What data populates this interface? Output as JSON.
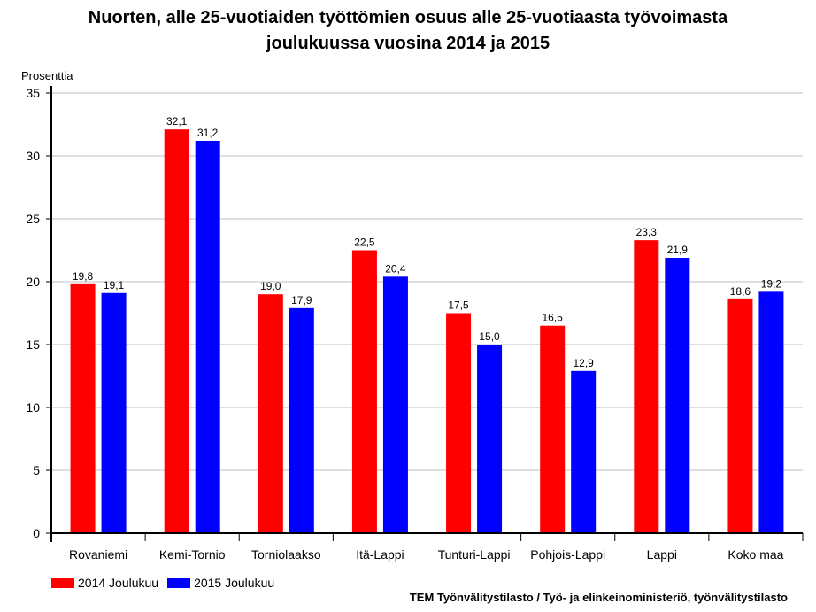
{
  "chart_data": {
    "type": "bar",
    "title": [
      "Nuorten, alle 25-vuotiaiden työttömien osuus alle 25-vuotiaasta työvoimasta",
      "joulukuussa vuosina 2014 ja 2015"
    ],
    "ylabel": "Prosenttia",
    "ylim": [
      0,
      35
    ],
    "yticks": [
      0,
      5,
      10,
      15,
      20,
      25,
      30,
      35
    ],
    "grid": true,
    "legend_position": "bottom-left",
    "categories": [
      "Rovaniemi",
      "Kemi-Tornio",
      "Torniolaakso",
      "Itä-Lappi",
      "Tunturi-Lappi",
      "Pohjois-Lappi",
      "Lappi",
      "Koko maa"
    ],
    "series": [
      {
        "name": "2014 Joulukuu",
        "color": "#ff0000",
        "values": [
          19.8,
          32.1,
          19.0,
          22.5,
          17.5,
          16.5,
          23.3,
          18.6
        ],
        "labels": [
          "19,8",
          "32,1",
          "19,0",
          "22,5",
          "17,5",
          "16,5",
          "23,3",
          "18,6"
        ]
      },
      {
        "name": "2015 Joulukuu",
        "color": "#0000ff",
        "values": [
          19.1,
          31.2,
          17.9,
          20.4,
          15.0,
          12.9,
          21.9,
          19.2
        ],
        "labels": [
          "19,1",
          "31,2",
          "17,9",
          "20,4",
          "15,0",
          "12,9",
          "21,9",
          "19,2"
        ]
      }
    ]
  },
  "source": "TEM Työnvälitystilasto / Työ- ja elinkeinoministeriö, työnvälitystilasto"
}
